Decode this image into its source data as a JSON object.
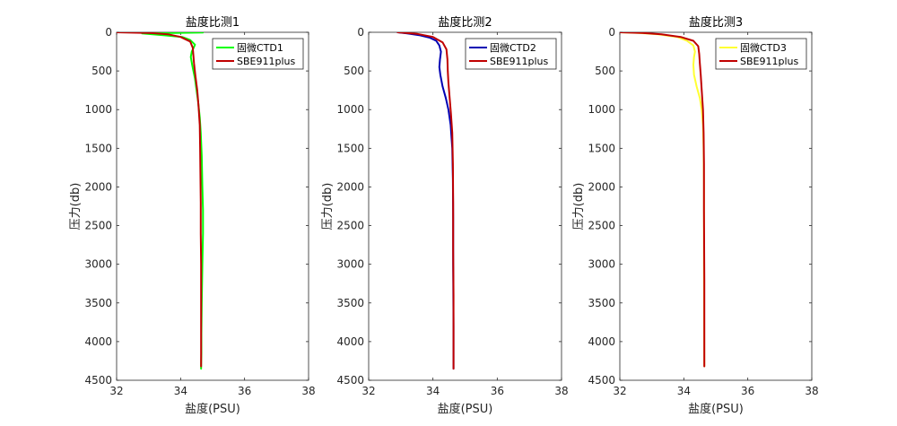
{
  "figure": {
    "ylabel": "压力(db)"
  },
  "chart_data": [
    {
      "type": "line",
      "title": "盐度比测1",
      "xlabel": "盐度(PSU)",
      "xlim": [
        32,
        38
      ],
      "xticks": [
        32,
        34,
        36,
        38
      ],
      "ylim": [
        0,
        4500
      ],
      "y_reversed": true,
      "yticks": [
        0,
        500,
        1000,
        1500,
        2000,
        2500,
        3000,
        3500,
        4000,
        4500
      ],
      "grid": false,
      "legend_position": "top-right",
      "series": [
        {
          "name": "固微CTD1",
          "color": "#00ff00",
          "x": [
            32.0,
            34.7,
            32.8,
            33.5,
            34.05,
            34.3,
            34.45,
            34.35,
            34.32,
            34.36,
            34.45,
            34.55,
            34.6,
            34.63,
            34.66,
            34.68,
            34.7,
            34.7,
            34.68,
            34.66,
            34.65,
            34.65,
            34.64,
            34.64
          ],
          "y": [
            0,
            2,
            15,
            40,
            60,
            100,
            160,
            250,
            320,
            420,
            600,
            900,
            1100,
            1300,
            1600,
            2000,
            2300,
            2600,
            3000,
            3500,
            3900,
            4150,
            4300,
            4350
          ]
        },
        {
          "name": "SBE911plus",
          "color": "#c00000",
          "x": [
            32.0,
            33.1,
            33.6,
            34.0,
            34.3,
            34.38,
            34.4,
            34.42,
            34.46,
            34.52,
            34.56,
            34.6,
            34.61,
            34.62,
            34.63,
            34.63,
            34.64,
            34.64,
            34.64,
            34.64
          ],
          "y": [
            0,
            10,
            25,
            60,
            120,
            200,
            300,
            400,
            550,
            750,
            950,
            1200,
            1500,
            1800,
            2200,
            2600,
            3000,
            3500,
            4000,
            4320
          ]
        }
      ]
    },
    {
      "type": "line",
      "title": "盐度比测2",
      "xlabel": "盐度(PSU)",
      "xlim": [
        32,
        38
      ],
      "xticks": [
        32,
        34,
        36,
        38
      ],
      "ylim": [
        0,
        4500
      ],
      "y_reversed": true,
      "yticks": [
        0,
        500,
        1000,
        1500,
        2000,
        2500,
        3000,
        3500,
        4000,
        4500
      ],
      "grid": false,
      "legend_position": "top-right",
      "series": [
        {
          "name": "固微CTD2",
          "color": "#0000b3",
          "x": [
            32.9,
            33.2,
            33.6,
            33.9,
            34.1,
            34.2,
            34.25,
            34.22,
            34.2,
            34.23,
            34.3,
            34.4,
            34.48,
            34.55,
            34.6,
            34.62,
            34.63,
            34.63,
            34.64,
            34.64
          ],
          "y": [
            0,
            15,
            40,
            70,
            110,
            170,
            250,
            350,
            450,
            550,
            700,
            850,
            1000,
            1200,
            1500,
            1900,
            2400,
            3000,
            3800,
            4350
          ]
        },
        {
          "name": "SBE911plus",
          "color": "#c00000",
          "x": [
            32.9,
            33.5,
            34.0,
            34.3,
            34.42,
            34.45,
            34.46,
            34.48,
            34.52,
            34.56,
            34.6,
            34.62,
            34.63,
            34.63,
            34.64,
            34.64,
            34.64
          ],
          "y": [
            0,
            20,
            60,
            130,
            220,
            350,
            500,
            650,
            850,
            1050,
            1300,
            1700,
            2200,
            2800,
            3400,
            4000,
            4350
          ]
        }
      ]
    },
    {
      "type": "line",
      "title": "盐度比测3",
      "xlabel": "盐度(PSU)",
      "xlim": [
        32,
        38
      ],
      "xticks": [
        32,
        34,
        36,
        38
      ],
      "ylim": [
        0,
        4500
      ],
      "y_reversed": true,
      "yticks": [
        0,
        500,
        1000,
        1500,
        2000,
        2500,
        3000,
        3500,
        4000,
        4500
      ],
      "grid": false,
      "legend_position": "top-right",
      "series": [
        {
          "name": "固微CTD3",
          "color": "#ffff33",
          "x": [
            32.0,
            32.6,
            33.2,
            33.8,
            34.1,
            34.3,
            34.35,
            34.32,
            34.3,
            34.32,
            34.4,
            34.5,
            34.56,
            34.6,
            34.62,
            34.63,
            34.63,
            34.64
          ],
          "y": [
            0,
            8,
            25,
            60,
            110,
            170,
            250,
            320,
            420,
            550,
            700,
            850,
            1000,
            1200,
            1500,
            2000,
            3000,
            4320
          ]
        },
        {
          "name": "SBE911plus",
          "color": "#c00000",
          "x": [
            32.0,
            32.7,
            33.3,
            33.9,
            34.3,
            34.45,
            34.48,
            34.5,
            34.53,
            34.56,
            34.6,
            34.62,
            34.63,
            34.63,
            34.64,
            34.64
          ],
          "y": [
            0,
            8,
            25,
            60,
            110,
            180,
            280,
            400,
            550,
            750,
            1000,
            1300,
            1700,
            2300,
            3200,
            4320
          ]
        }
      ]
    }
  ]
}
